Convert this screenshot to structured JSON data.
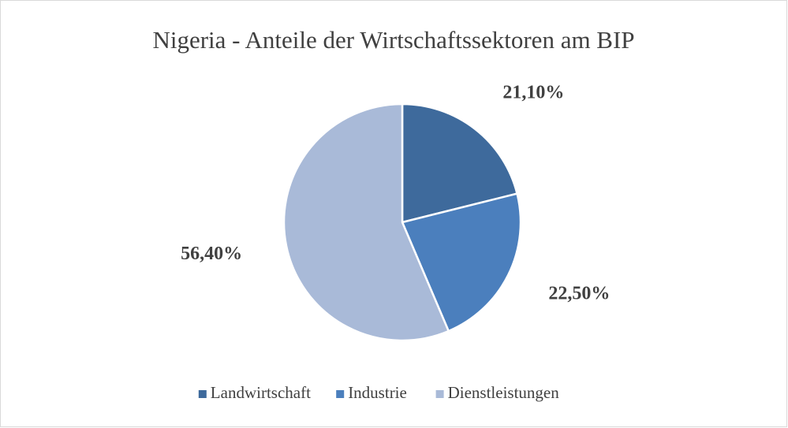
{
  "chart_data": {
    "type": "pie",
    "title": "Nigeria - Anteile der Wirtschaftssektoren am BIP",
    "categories": [
      "Landwirtschaft",
      "Industrie",
      "Dienstleistungen"
    ],
    "values": [
      21.1,
      22.5,
      56.4
    ],
    "value_labels": [
      "21,10%",
      "22,50%",
      "56,40%"
    ],
    "colors": [
      "#3e6a9c",
      "#4b7fbd",
      "#a9bad8"
    ],
    "legend": "bottom"
  }
}
